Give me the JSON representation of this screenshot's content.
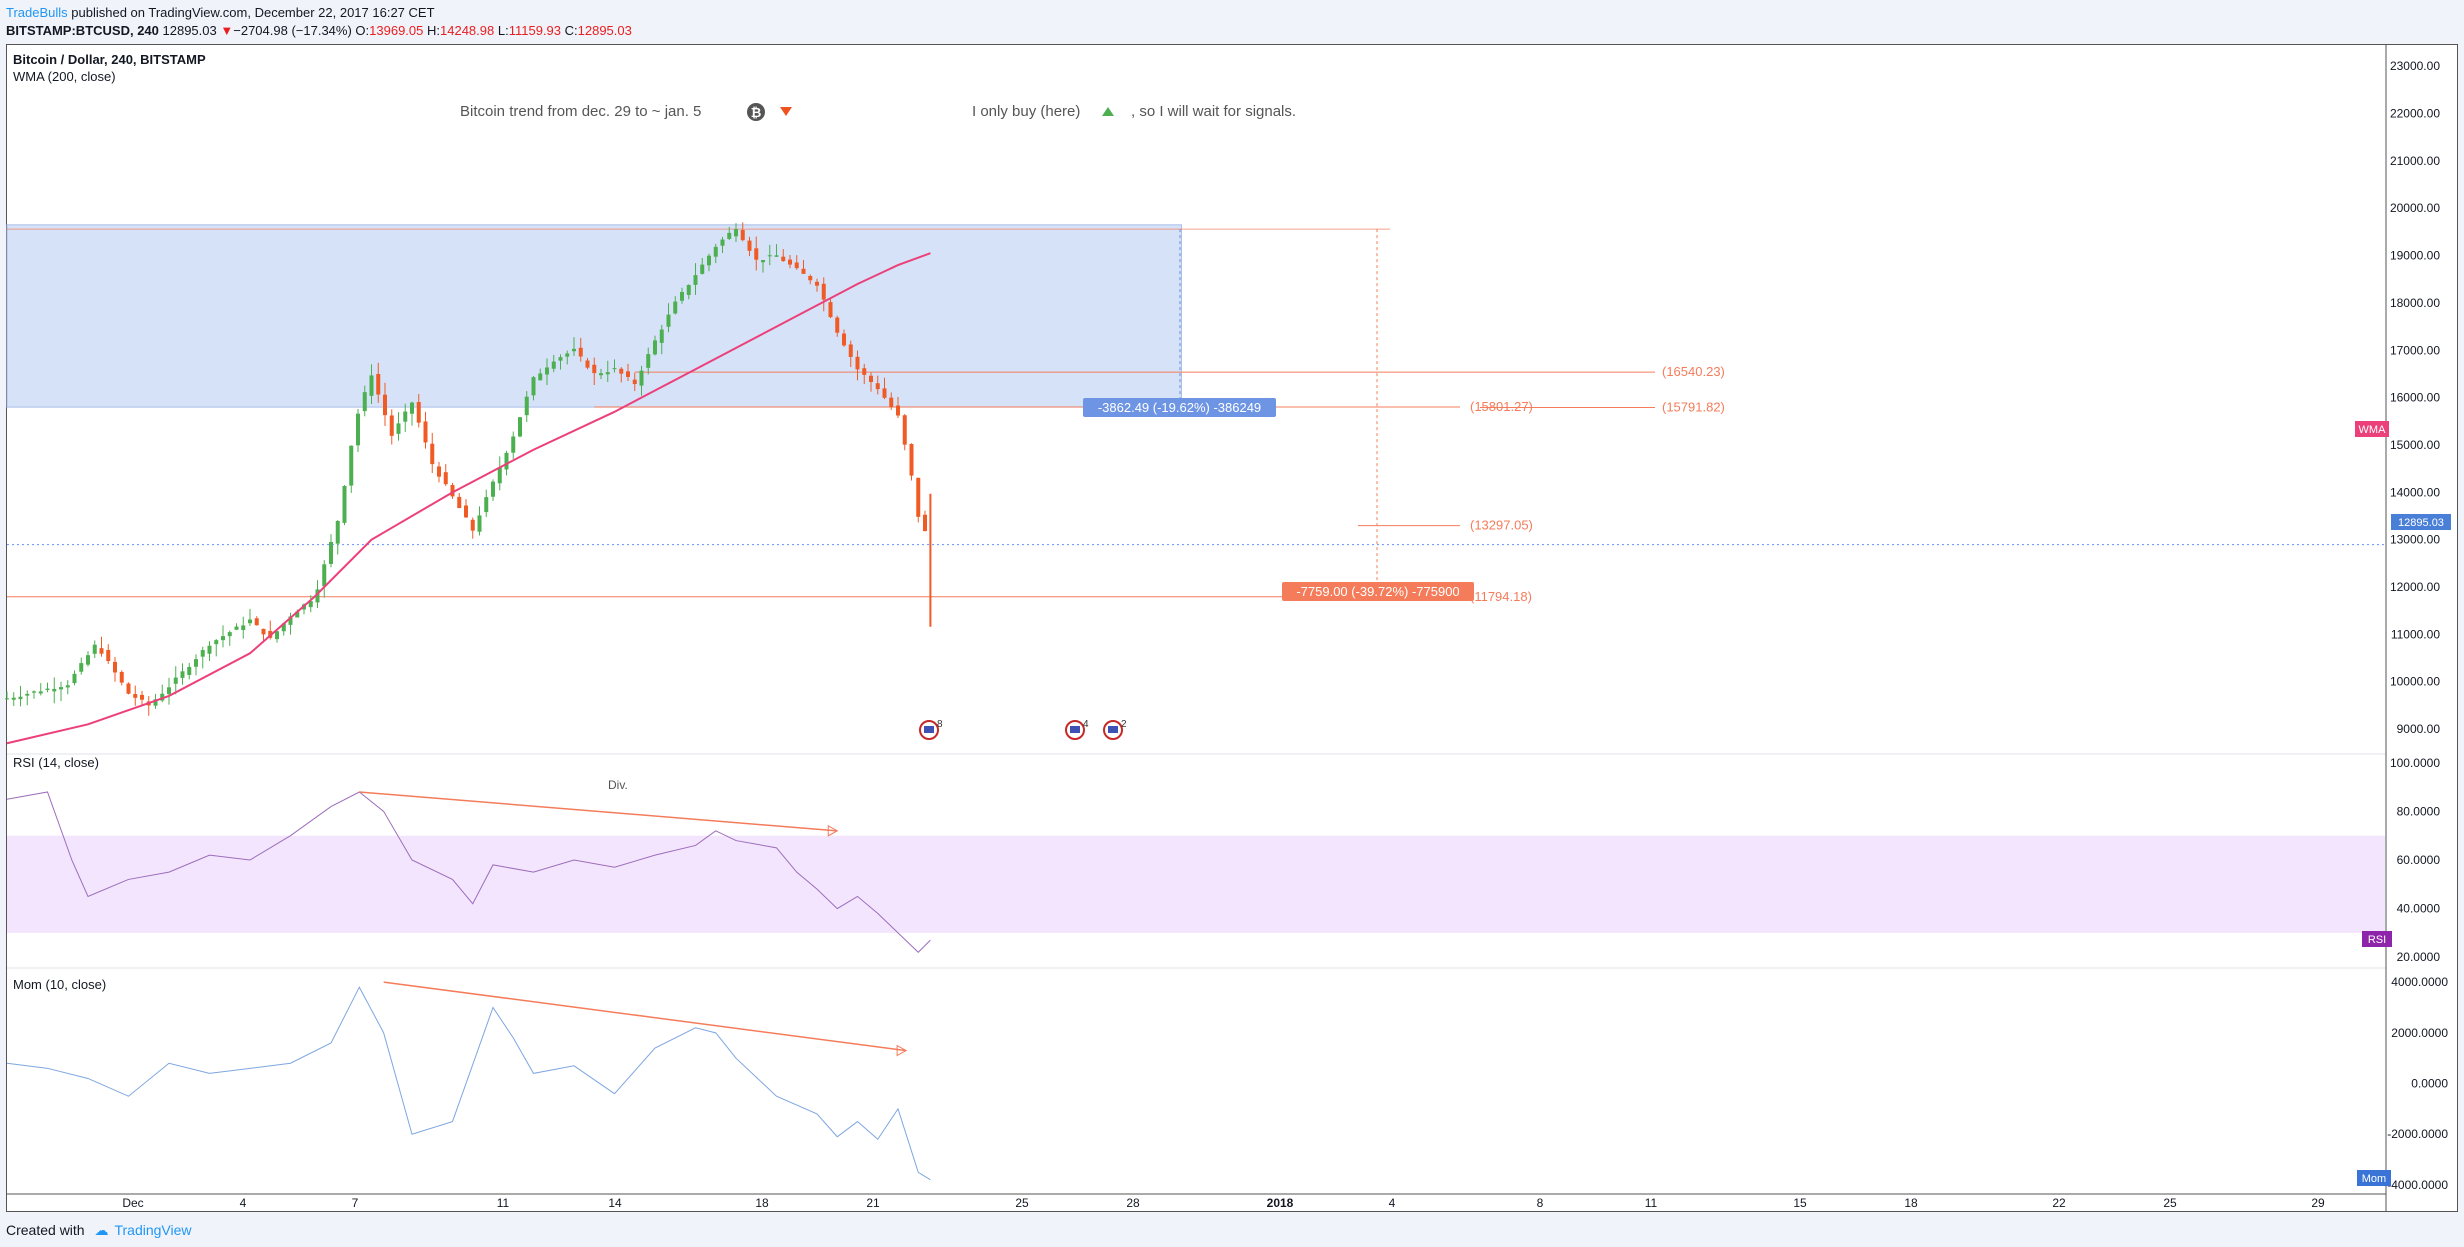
{
  "header": {
    "author": "TradeBulls",
    "published": " published on TradingView.com, December 22, 2017 16:27 CET",
    "symbol": "BITSTAMP:BTCUSD, 240",
    "last": "12895.03",
    "change": "−2704.98 (−17.34%)",
    "o_label": "O:",
    "o_val": "13969.05",
    "h_label": "H:",
    "h_val": "14248.98",
    "l_label": "L:",
    "l_val": "11159.93",
    "c_label": "C:",
    "c_val": "12895.03"
  },
  "footer": {
    "created": "Created with",
    "brand": "TradingView"
  },
  "colors": {
    "candle_up": "#4caf50",
    "candle_down": "#f05a24",
    "wma": "#ec407a",
    "rsi": "#9c6dbb",
    "mom": "#7ea6e0",
    "zone": "#d6e2f8",
    "rsi_band": "#f3e5fd",
    "annot": "#f47c5a"
  },
  "chart_data": [
    {
      "type": "candlestick",
      "title": "Bitcoin / Dollar, 240, BITSTAMP",
      "indicator": "WMA (200, close)",
      "x_ticks": [
        "Dec",
        "4",
        "7",
        "11",
        "14",
        "18",
        "21",
        "25",
        "28",
        "2018",
        "4",
        "8",
        "11",
        "15",
        "18",
        "22",
        "25",
        "29"
      ],
      "y_ticks": [
        "23000.00",
        "22000.00",
        "21000.00",
        "20000.00",
        "19000.00",
        "18000.00",
        "17000.00",
        "16000.00",
        "15000.00",
        "14000.00",
        "13000.00",
        "12000.00",
        "11000.00",
        "10000.00",
        "9000.00"
      ],
      "ylim": [
        8600,
        23300
      ],
      "close_path": [
        [
          0,
          9650
        ],
        [
          1.5,
          9950
        ],
        [
          2.2,
          10800
        ],
        [
          3,
          9750
        ],
        [
          3.5,
          9500
        ],
        [
          4,
          9900
        ],
        [
          5,
          10800
        ],
        [
          6,
          11300
        ],
        [
          6.5,
          10900
        ],
        [
          7,
          11400
        ],
        [
          7.6,
          11800
        ],
        [
          8.2,
          13500
        ],
        [
          8.6,
          15500
        ],
        [
          9.0,
          16500
        ],
        [
          9.5,
          15200
        ],
        [
          10,
          15900
        ],
        [
          10.5,
          14600
        ],
        [
          11,
          13900
        ],
        [
          11.5,
          13200
        ],
        [
          12,
          14200
        ],
        [
          12.5,
          15200
        ],
        [
          13,
          16400
        ],
        [
          13.5,
          16800
        ],
        [
          14,
          17000
        ],
        [
          14.5,
          16500
        ],
        [
          15,
          16600
        ],
        [
          15.5,
          16300
        ],
        [
          16,
          17200
        ],
        [
          16.5,
          18000
        ],
        [
          17,
          18600
        ],
        [
          17.5,
          19200
        ],
        [
          18,
          19600
        ],
        [
          18.5,
          18900
        ],
        [
          19,
          19000
        ],
        [
          19.5,
          18700
        ],
        [
          20,
          18400
        ],
        [
          20.5,
          17400
        ],
        [
          21,
          16600
        ],
        [
          21.5,
          16200
        ],
        [
          22,
          15600
        ],
        [
          22.3,
          14500
        ],
        [
          22.5,
          13500
        ],
        [
          22.8,
          12895
        ]
      ],
      "wma_path": [
        [
          0,
          8700
        ],
        [
          2,
          9100
        ],
        [
          4,
          9700
        ],
        [
          6,
          10600
        ],
        [
          7.6,
          11800
        ],
        [
          9,
          13000
        ],
        [
          11,
          14000
        ],
        [
          13,
          14900
        ],
        [
          15,
          15700
        ],
        [
          17,
          16600
        ],
        [
          19,
          17500
        ],
        [
          21,
          18400
        ],
        [
          22,
          18800
        ],
        [
          22.8,
          19050
        ]
      ],
      "wma_label": "WMA",
      "last_label": "12895.03",
      "zone": {
        "from_day": 0,
        "to_day": 29,
        "low": 15800,
        "high": 19650
      },
      "levels": [
        {
          "label": "(16540.23)",
          "value": 16540
        },
        {
          "label": "(15801.27)",
          "value": 15801
        },
        {
          "label": "(15791.82)",
          "value": 15791
        },
        {
          "label": "(13297.05)",
          "value": 13297
        },
        {
          "label": "(11794.18)",
          "value": 11794
        }
      ],
      "measure_labels": [
        "-3862.49 (-19.62%) -386249",
        "-7759.00 (-39.72%) -775900"
      ],
      "annotations": [
        "Bitcoin trend from dec. 29 to ~ jan. 5",
        "I only buy (here)",
        ", so I will wait for signals."
      ],
      "event_counts": [
        "8",
        "4",
        "2"
      ]
    },
    {
      "type": "line",
      "title": "RSI (14, close)",
      "y_ticks": [
        "100.0000",
        "80.0000",
        "60.0000",
        "40.0000",
        "20.0000"
      ],
      "ylim": [
        18,
        102
      ],
      "band": [
        30,
        70
      ],
      "label": "RSI",
      "divergence_label": "Div.",
      "values": [
        [
          0,
          85
        ],
        [
          1,
          88
        ],
        [
          1.6,
          60
        ],
        [
          2,
          45
        ],
        [
          3,
          52
        ],
        [
          4,
          55
        ],
        [
          5,
          62
        ],
        [
          6,
          60
        ],
        [
          7,
          70
        ],
        [
          8,
          82
        ],
        [
          8.7,
          88
        ],
        [
          9.3,
          80
        ],
        [
          10,
          60
        ],
        [
          11,
          52
        ],
        [
          11.5,
          42
        ],
        [
          12,
          58
        ],
        [
          13,
          55
        ],
        [
          14,
          60
        ],
        [
          15,
          57
        ],
        [
          16,
          62
        ],
        [
          17,
          66
        ],
        [
          17.5,
          72
        ],
        [
          18,
          68
        ],
        [
          19,
          65
        ],
        [
          19.5,
          55
        ],
        [
          20,
          48
        ],
        [
          20.5,
          40
        ],
        [
          21,
          45
        ],
        [
          21.5,
          38
        ],
        [
          22,
          30
        ],
        [
          22.5,
          22
        ],
        [
          22.8,
          27
        ]
      ]
    },
    {
      "type": "line",
      "title": "Mom (10, close)",
      "y_ticks": [
        "4000.0000",
        "2000.0000",
        "0.0000",
        "-2000.0000",
        "-4000.0000"
      ],
      "ylim": [
        -4200,
        4400
      ],
      "label": "Mom",
      "values": [
        [
          0,
          800
        ],
        [
          1,
          600
        ],
        [
          2,
          200
        ],
        [
          3,
          -500
        ],
        [
          4,
          800
        ],
        [
          5,
          400
        ],
        [
          6,
          600
        ],
        [
          7,
          800
        ],
        [
          8,
          1600
        ],
        [
          8.7,
          3800
        ],
        [
          9.3,
          2000
        ],
        [
          10,
          -2000
        ],
        [
          11,
          -1500
        ],
        [
          12,
          3000
        ],
        [
          12.5,
          1800
        ],
        [
          13,
          400
        ],
        [
          14,
          700
        ],
        [
          15,
          -400
        ],
        [
          16,
          1400
        ],
        [
          17,
          2200
        ],
        [
          17.5,
          2000
        ],
        [
          18,
          1000
        ],
        [
          19,
          -500
        ],
        [
          20,
          -1200
        ],
        [
          20.5,
          -2100
        ],
        [
          21,
          -1500
        ],
        [
          21.5,
          -2200
        ],
        [
          22,
          -1000
        ],
        [
          22.5,
          -3500
        ],
        [
          22.8,
          -3800
        ]
      ]
    }
  ]
}
